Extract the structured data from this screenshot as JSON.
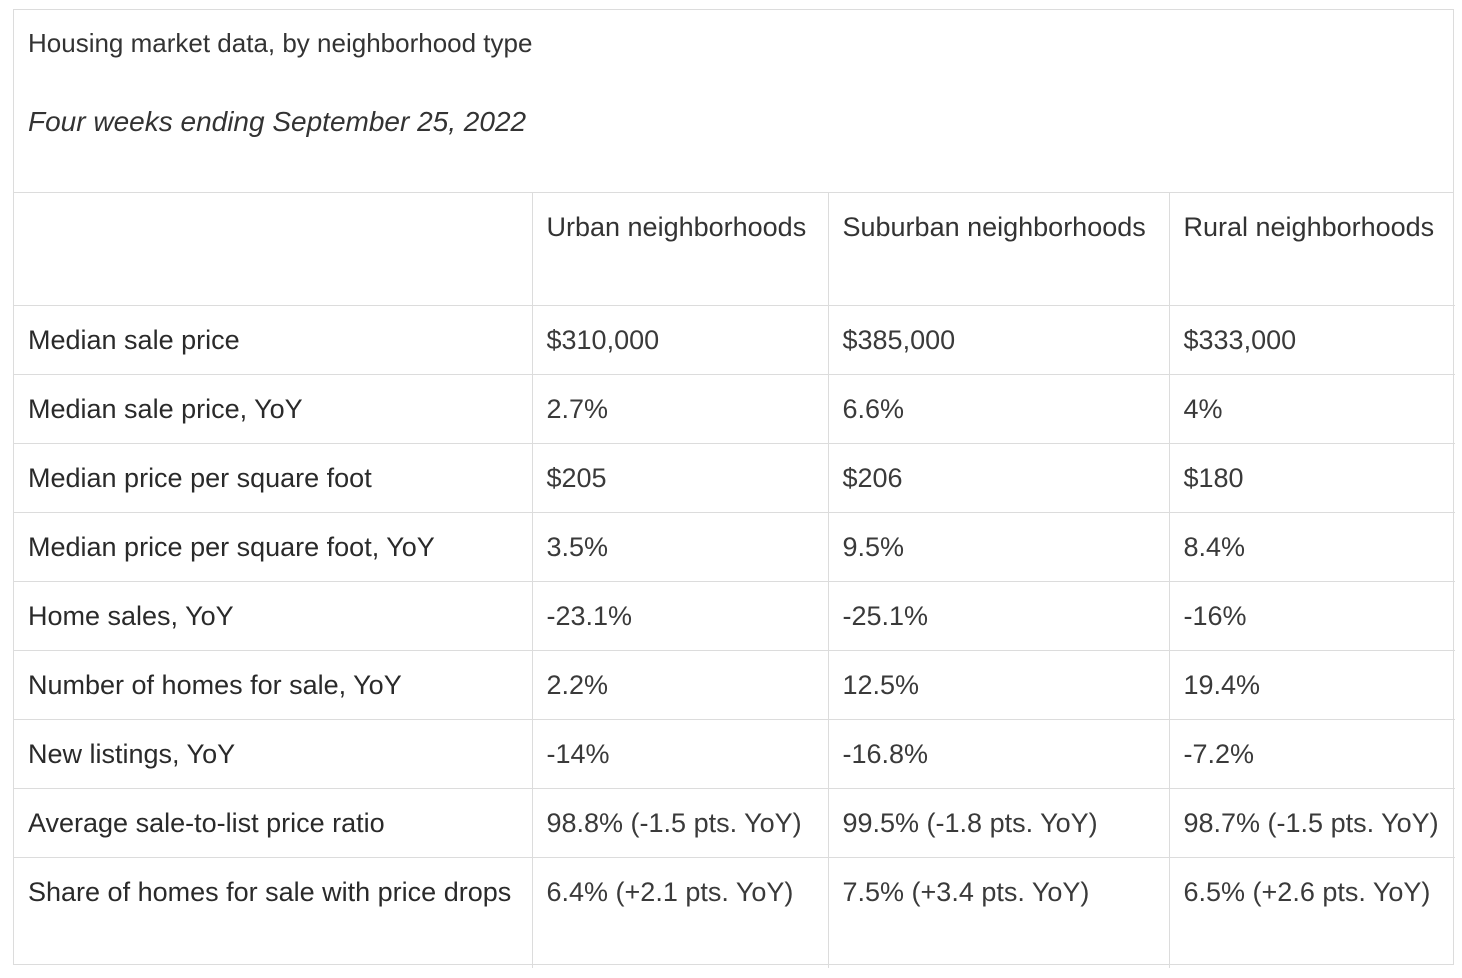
{
  "caption": {
    "title": "Housing market data, by neighborhood type",
    "subtitle": "Four weeks ending September 25, 2022"
  },
  "columns": [
    "",
    "Urban neighborhoods",
    "Suburban neighborhoods",
    "Rural neighborhoods"
  ],
  "rows": [
    {
      "label": "Median sale price",
      "urban": "$310,000",
      "suburban": "$385,000",
      "rural": "$333,000"
    },
    {
      "label": "Median sale price, YoY",
      "urban": "2.7%",
      "suburban": "6.6%",
      "rural": "4%"
    },
    {
      "label": "Median price per square foot",
      "urban": "$205",
      "suburban": "$206",
      "rural": "$180"
    },
    {
      "label": "Median price per square foot, YoY",
      "urban": "3.5%",
      "suburban": "9.5%",
      "rural": "8.4%"
    },
    {
      "label": "Home sales, YoY",
      "urban": "-23.1%",
      "suburban": "-25.1%",
      "rural": "-16%"
    },
    {
      "label": "Number of homes for sale, YoY",
      "urban": "2.2%",
      "suburban": "12.5%",
      "rural": "19.4%"
    },
    {
      "label": "New listings, YoY",
      "urban": "-14%",
      "suburban": "-16.8%",
      "rural": "-7.2%"
    },
    {
      "label": "Average sale-to-list price ratio",
      "urban": "98.8% (-1.5 pts. YoY)",
      "suburban": "99.5% (-1.8 pts. YoY)",
      "rural": "98.7% (-1.5 pts. YoY)"
    },
    {
      "label": "Share of homes for sale with price drops",
      "urban": "6.4% (+2.1 pts. YoY)",
      "suburban": "7.5% (+3.4 pts. YoY)",
      "rural": "6.5% (+2.6 pts. YoY)"
    }
  ]
}
